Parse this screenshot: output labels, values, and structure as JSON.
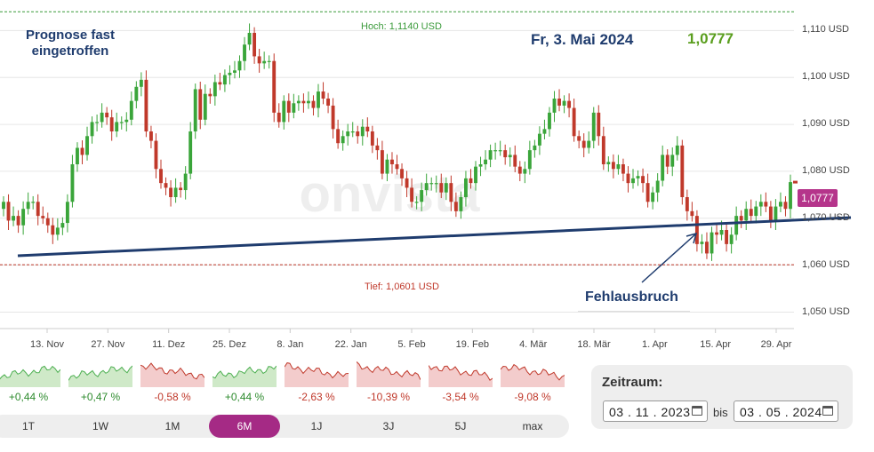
{
  "chart_data": {
    "type": "candlestick",
    "title": "",
    "y_axis": {
      "ticks": [
        1.05,
        1.06,
        1.07,
        1.08,
        1.09,
        1.1,
        1.11
      ],
      "tick_labels": [
        "1,050 USD",
        "1,060 USD",
        "1,070 USD",
        "1,080 USD",
        "1,090 USD",
        "1,100 USD",
        "1,110 USD"
      ],
      "range": [
        1.0465,
        1.1165
      ]
    },
    "x_axis": {
      "tick_labels": [
        "13. Nov",
        "27. Nov",
        "11. Dez",
        "25. Dez",
        "8. Jan",
        "22. Jan",
        "5. Feb",
        "19. Feb",
        "4. Mär",
        "18. Mär",
        "1. Apr",
        "15. Apr",
        "29. Apr"
      ]
    },
    "close_series": [
      1.0735,
      1.0695,
      1.0705,
      1.0685,
      1.072,
      1.0735,
      1.0735,
      1.0705,
      1.07,
      1.0685,
      1.0665,
      1.068,
      1.069,
      1.0735,
      1.0815,
      1.085,
      1.0835,
      1.0875,
      1.0905,
      1.0905,
      1.0925,
      1.0915,
      1.0885,
      1.0905,
      1.0905,
      1.091,
      1.095,
      1.098,
      1.0995,
      1.0885,
      1.0865,
      1.0805,
      1.0775,
      1.0765,
      1.0745,
      1.0765,
      1.076,
      1.0795,
      1.0885,
      1.0975,
      1.091,
      1.0965,
      1.096,
      1.099,
      1.0985,
      1.1005,
      1.101,
      1.1015,
      1.1035,
      1.107,
      1.1095,
      1.1045,
      1.103,
      1.1035,
      1.1035,
      1.0925,
      1.0905,
      1.095,
      1.0925,
      1.0945,
      1.095,
      1.0945,
      1.095,
      1.0935,
      1.097,
      1.0955,
      1.094,
      1.089,
      1.086,
      1.0875,
      1.0885,
      1.0885,
      1.0875,
      1.0895,
      1.0885,
      1.0855,
      1.0845,
      1.0795,
      1.0825,
      1.0815,
      1.0805,
      1.0785,
      1.0765,
      1.0735,
      1.0735,
      1.076,
      1.0775,
      1.0775,
      1.0775,
      1.0755,
      1.0775,
      1.0735,
      1.0715,
      1.0745,
      1.0785,
      1.0775,
      1.081,
      1.0815,
      1.0825,
      1.0845,
      1.0845,
      1.0845,
      1.083,
      1.0835,
      1.081,
      1.0795,
      1.0805,
      1.0845,
      1.0855,
      1.088,
      1.089,
      1.0925,
      1.0955,
      1.094,
      1.095,
      1.0935,
      1.0875,
      1.0865,
      1.085,
      1.0865,
      1.0925,
      1.0875,
      1.0815,
      1.082,
      1.0805,
      1.0815,
      1.0795,
      1.0775,
      1.0785,
      1.079,
      1.0775,
      1.0735,
      1.0755,
      1.078,
      1.0835,
      1.081,
      1.0835,
      1.0855,
      1.0745,
      1.0715,
      1.0705,
      1.0645,
      1.065,
      1.0625,
      1.067,
      1.0665,
      1.0675,
      1.0645,
      1.0665,
      1.0705,
      1.0695,
      1.072,
      1.0705,
      1.0725,
      1.0735,
      1.0725,
      1.0695,
      1.0725,
      1.0735,
      1.072,
      1.0777
    ],
    "high": 1.114,
    "low": 1.0601,
    "hoch_label": "Hoch: 1,1140 USD",
    "tief_label": "Tief: 1,0601 USD",
    "last_value_label": "1,0777",
    "colors": {
      "up": "#3aa53a",
      "down": "#c0392b",
      "trendline": "#1f3c6e",
      "last_box": "#b5358b"
    },
    "watermark": "onvista"
  },
  "annotations": {
    "prognose": "Prognose fast eingetroffen",
    "date": "Fr, 3. Mai 2024",
    "price": "1,0777",
    "fehlausbruch": "Fehlausbruch"
  },
  "performance": [
    {
      "label": "1T",
      "change": "+0,44 %",
      "trend": "up"
    },
    {
      "label": "1W",
      "change": "+0,47 %",
      "trend": "up"
    },
    {
      "label": "1M",
      "change": "-0,58 %",
      "trend": "down"
    },
    {
      "label": "6M",
      "change": "+0,44 %",
      "trend": "up"
    },
    {
      "label": "1J",
      "change": "-2,63 %",
      "trend": "down"
    },
    {
      "label": "3J",
      "change": "-10,39 %",
      "trend": "down"
    },
    {
      "label": "5J",
      "change": "-3,54 %",
      "trend": "down"
    },
    {
      "label": "max",
      "change": "-9,08 %",
      "trend": "down"
    }
  ],
  "range_buttons": {
    "items": [
      "1T",
      "1W",
      "1M",
      "6M",
      "1J",
      "3J",
      "5J",
      "max"
    ],
    "active": "6M"
  },
  "zeitraum": {
    "title": "Zeitraum:",
    "from": "03 . 11 . 2023",
    "bis": "bis",
    "to": "03 . 05 . 2024"
  }
}
